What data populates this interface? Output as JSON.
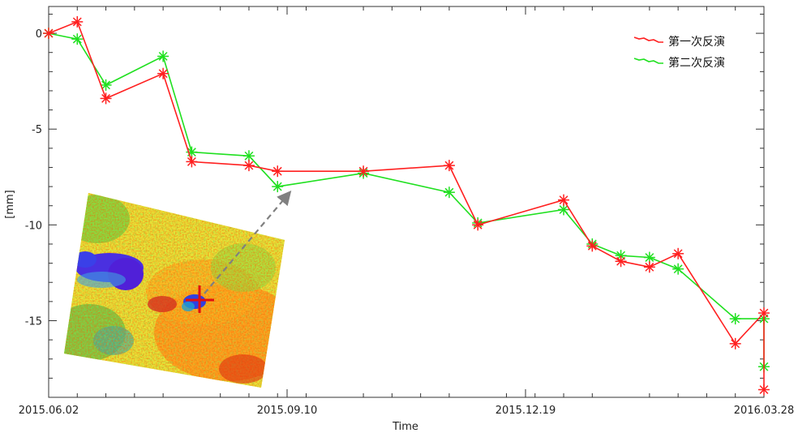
{
  "chart_data": {
    "type": "line",
    "xlabel": "Time",
    "ylabel": "[mm]",
    "ylim": [
      -19,
      1.4
    ],
    "yticks": [
      0,
      -5,
      -10,
      -15
    ],
    "ytick_labels": [
      "0",
      "-5",
      "-10",
      "-15"
    ],
    "xlim": [
      "2015.06.02",
      "2016.03.28"
    ],
    "xtick_labels": [
      "2015.06.02",
      "2015.09.10",
      "2015.12.19",
      "2016.03.28"
    ],
    "legend_position": "top-right",
    "series": [
      {
        "name": "第一次反演",
        "color": "#ff2020",
        "x_days": [
          0,
          12,
          24,
          48,
          60,
          84,
          96,
          132,
          168,
          180,
          216,
          228,
          240,
          252,
          264,
          288,
          300,
          300
        ],
        "values": [
          0,
          0.6,
          -3.4,
          -2.1,
          -6.7,
          -6.9,
          -7.2,
          -7.2,
          -6.9,
          -10.0,
          -8.7,
          -11.1,
          -11.9,
          -12.2,
          -11.5,
          -16.2,
          -14.6,
          -18.6
        ]
      },
      {
        "name": "第二次反演",
        "color": "#20e020",
        "x_days": [
          0,
          12,
          24,
          48,
          60,
          84,
          96,
          132,
          168,
          180,
          216,
          228,
          240,
          252,
          264,
          288,
          300,
          300
        ],
        "values": [
          0,
          -0.3,
          -2.7,
          -1.2,
          -6.2,
          -6.4,
          -8.0,
          -7.3,
          -8.3,
          -9.9,
          -9.2,
          -11.0,
          -11.6,
          -11.7,
          -12.3,
          -14.9,
          -14.9,
          -17.4
        ]
      }
    ]
  },
  "colors": {
    "series1": "#ff2020",
    "series2": "#20e020",
    "arrow": "#808080",
    "marker_cross": "#e01010"
  }
}
